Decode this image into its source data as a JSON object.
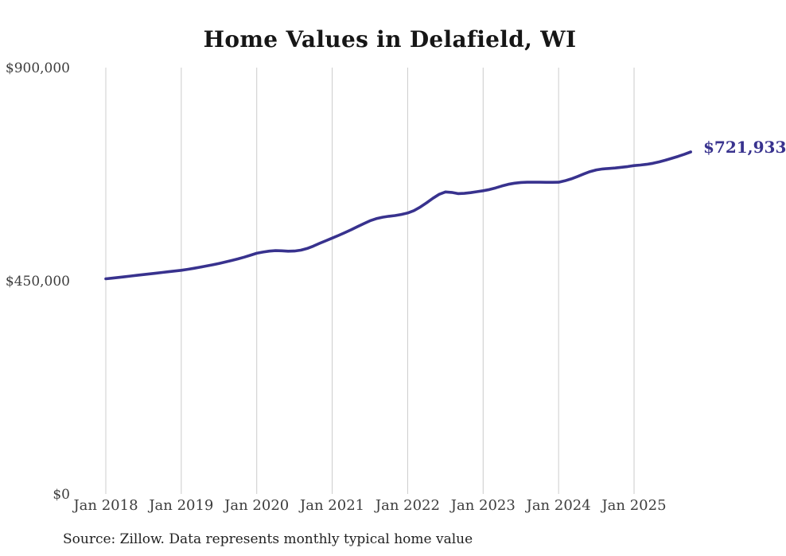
{
  "chart": {
    "title": "Home Values in Delafield, WI",
    "end_label": "$721,933",
    "source_note": "Source: Zillow. Data represents monthly typical home value",
    "accent_color": "#38328e",
    "gridline_color": "#cccccc",
    "axis_label_color": "#3d3d3d",
    "background_color": "#ffffff"
  },
  "chart_data": {
    "type": "line",
    "title": "Home Values in Delafield, WI",
    "xlabel": "",
    "ylabel": "",
    "unit": "USD",
    "frequency": "monthly",
    "x_start": "2018-01",
    "x_end": "2025-10",
    "x_tick_labels": [
      "Jan 2018",
      "Jan 2019",
      "Jan 2020",
      "Jan 2021",
      "Jan 2022",
      "Jan 2023",
      "Jan 2024",
      "Jan 2025"
    ],
    "y_tick_labels": [
      "$0",
      "$450,000",
      "$900,000"
    ],
    "y_tick_values": [
      0,
      450000,
      900000
    ],
    "ylim": [
      0,
      900000
    ],
    "grid": "vertical-only",
    "legend": "none",
    "line_color": "#38328e",
    "series": [
      {
        "name": "Typical home value",
        "final_value": 721933,
        "final_value_label": "$721,933",
        "values": [
          454000,
          455400,
          456900,
          458400,
          459900,
          461400,
          462900,
          464400,
          465900,
          467500,
          469000,
          470500,
          472000,
          474000,
          476200,
          478600,
          481000,
          483600,
          486400,
          489400,
          492600,
          496000,
          499800,
          503800,
          508000,
          510500,
          512500,
          513500,
          513200,
          512400,
          512600,
          514500,
          518000,
          523000,
          529000,
          534500,
          540000,
          545500,
          551500,
          557500,
          564000,
          570500,
          576500,
          581000,
          584000,
          586000,
          587500,
          590000,
          593000,
          598000,
          605500,
          614500,
          624000,
          632500,
          637500,
          636500,
          634000,
          634500,
          636000,
          638000,
          640000,
          642500,
          646000,
          650000,
          653500,
          656000,
          657500,
          658000,
          658200,
          658000,
          657800,
          657800,
          658000,
          661000,
          665000,
          670000,
          675500,
          680500,
          684000,
          686000,
          687000,
          688000,
          689500,
          691000,
          693000,
          694200,
          695800,
          698000,
          701000,
          704500,
          708500,
          712500,
          717000,
          721933
        ]
      }
    ]
  }
}
